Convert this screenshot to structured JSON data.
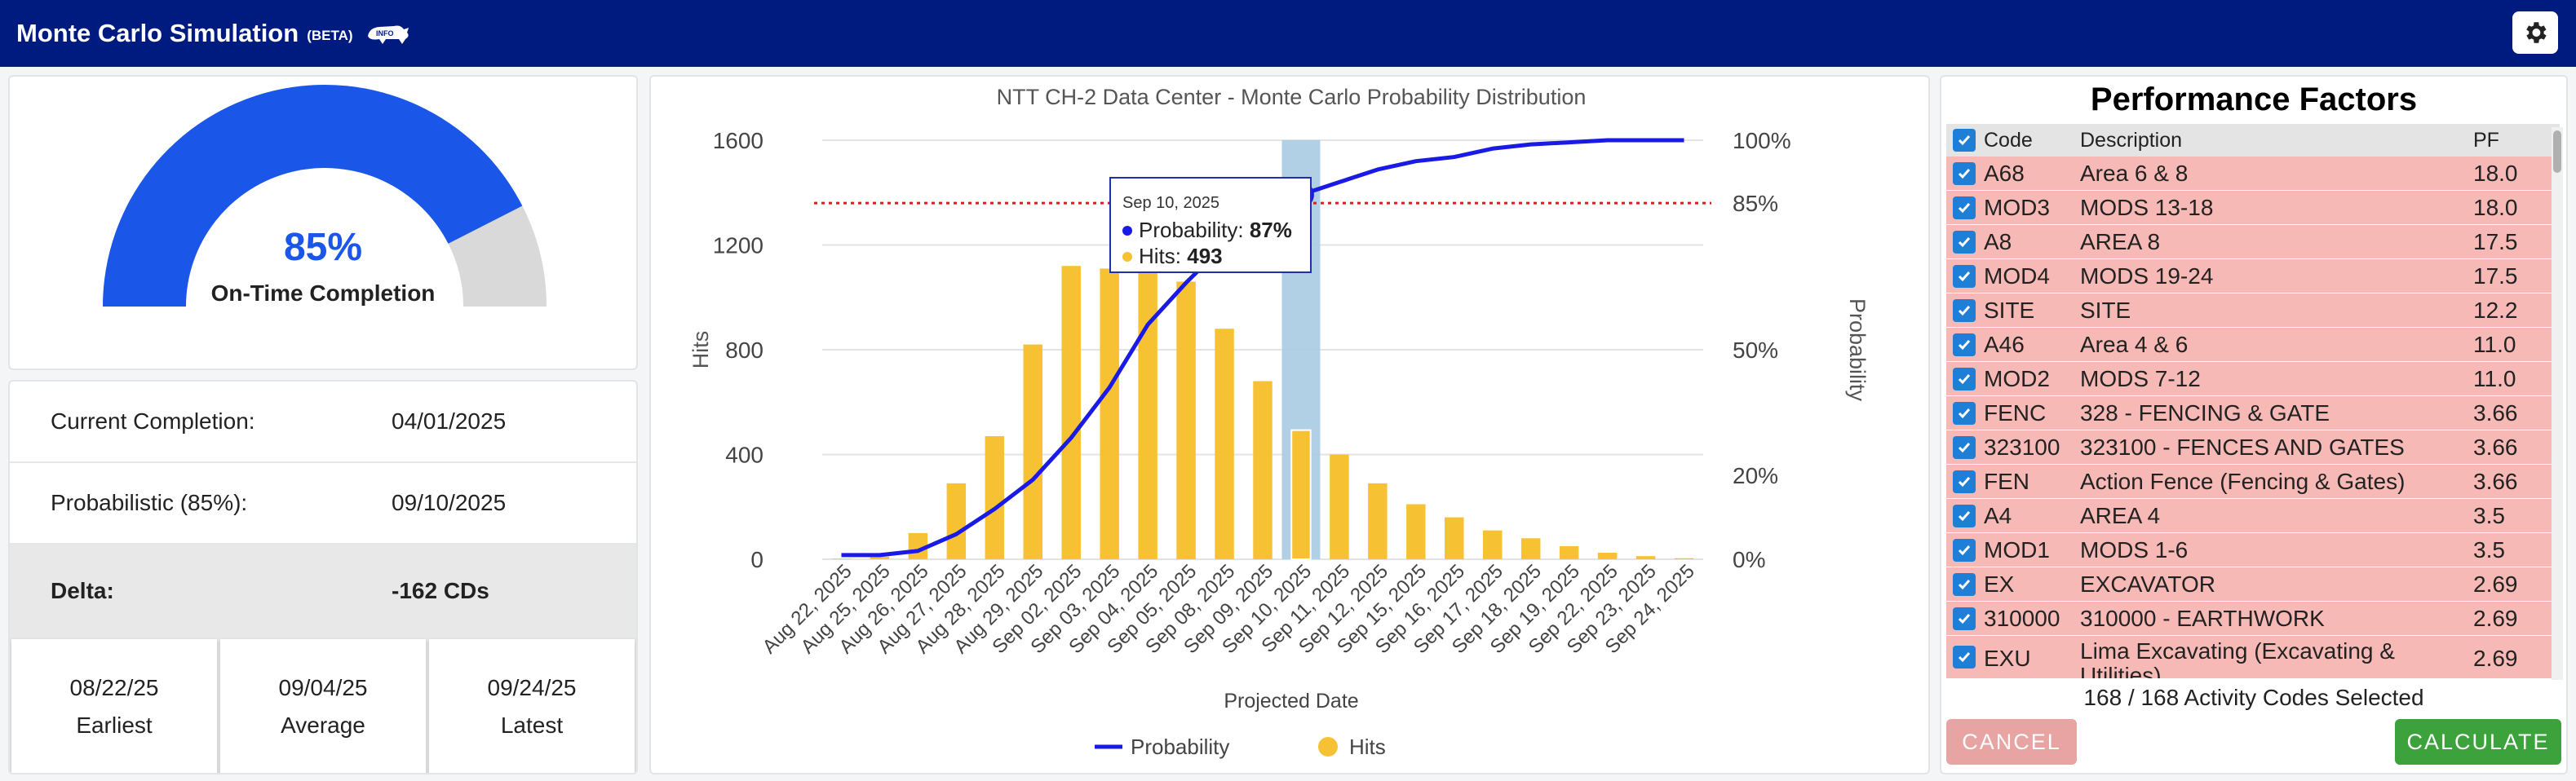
{
  "header": {
    "title": "Monte Carlo Simulation",
    "beta": "(BETA)",
    "info_icon": "info-rhino-icon",
    "settings_icon": "gear-icon"
  },
  "gauge": {
    "value_text": "85%",
    "value": 0.85,
    "label": "On-Time Completion",
    "fill_color": "#1a56e8",
    "track_color": "#d9d9d9"
  },
  "stats": {
    "current_label": "Current Completion:",
    "current_value": "04/01/2025",
    "prob_label": "Probabilistic (85%):",
    "prob_value": "09/10/2025",
    "delta_label": "Delta:",
    "delta_value": "-162 CDs",
    "earliest": {
      "date": "08/22/25",
      "label": "Earliest"
    },
    "average": {
      "date": "09/04/25",
      "label": "Average"
    },
    "latest": {
      "date": "09/24/25",
      "label": "Latest"
    }
  },
  "chart_data": {
    "type": "bar",
    "title": "NTT CH-2 Data Center - Monte Carlo Probability Distribution",
    "xlabel": "Projected Date",
    "ylabel": "Hits",
    "y2label": "Probability",
    "ylim": [
      0,
      1600
    ],
    "yticks": [
      "0",
      "400",
      "800",
      "1200",
      "1600"
    ],
    "y2lim": [
      0,
      100
    ],
    "y2ticks": [
      {
        "v": 0,
        "label": "0%"
      },
      {
        "v": 20,
        "label": "20%"
      },
      {
        "v": 50,
        "label": "50%"
      },
      {
        "v": 85,
        "label": "85%"
      },
      {
        "v": 100,
        "label": "100%"
      }
    ],
    "categories": [
      "Aug 22, 2025",
      "Aug 25, 2025",
      "Aug 26, 2025",
      "Aug 27, 2025",
      "Aug 28, 2025",
      "Aug 29, 2025",
      "Sep 02, 2025",
      "Sep 03, 2025",
      "Sep 04, 2025",
      "Sep 05, 2025",
      "Sep 08, 2025",
      "Sep 09, 2025",
      "Sep 10, 2025",
      "Sep 11, 2025",
      "Sep 12, 2025",
      "Sep 15, 2025",
      "Sep 16, 2025",
      "Sep 17, 2025",
      "Sep 18, 2025",
      "Sep 19, 2025",
      "Sep 22, 2025",
      "Sep 23, 2025",
      "Sep 24, 2025"
    ],
    "series": [
      {
        "name": "Hits",
        "type": "bar",
        "color": "#f6c234",
        "values": [
          2,
          10,
          100,
          290,
          470,
          820,
          1120,
          1110,
          1120,
          1060,
          880,
          680,
          493,
          400,
          290,
          210,
          160,
          110,
          80,
          50,
          25,
          12,
          4
        ]
      },
      {
        "name": "Probability",
        "type": "line",
        "color": "#1a1ae6",
        "values": [
          1,
          1,
          2,
          6,
          12,
          19,
          29,
          41,
          56,
          66,
          75,
          81,
          87,
          90,
          93,
          95,
          96,
          98,
          99,
          99.5,
          100,
          100,
          100
        ]
      }
    ],
    "threshold": {
      "value": 85,
      "color": "#d62020"
    },
    "highlight_index": 12,
    "tooltip": {
      "date": "Sep 10, 2025",
      "prob_label": "Probability:",
      "prob_value": "87%",
      "hits_label": "Hits:",
      "hits_value": "493"
    },
    "legend": {
      "position": "bottom"
    }
  },
  "perf": {
    "title": "Performance Factors",
    "headers": {
      "code": "Code",
      "desc": "Description",
      "pf": "PF"
    },
    "rows": [
      {
        "code": "A68",
        "desc": "Area 6 & 8",
        "pf": "18.0"
      },
      {
        "code": "MOD3",
        "desc": "MODS 13-18",
        "pf": "18.0"
      },
      {
        "code": "A8",
        "desc": "AREA 8",
        "pf": "17.5"
      },
      {
        "code": "MOD4",
        "desc": "MODS 19-24",
        "pf": "17.5"
      },
      {
        "code": "SITE",
        "desc": "SITE",
        "pf": "12.2"
      },
      {
        "code": "A46",
        "desc": "Area 4 & 6",
        "pf": "11.0"
      },
      {
        "code": "MOD2",
        "desc": "MODS 7-12",
        "pf": "11.0"
      },
      {
        "code": "FENC",
        "desc": "328 - FENCING & GATE",
        "pf": "3.66"
      },
      {
        "code": "323100",
        "desc": "323100 - FENCES AND GATES",
        "pf": "3.66"
      },
      {
        "code": "FEN",
        "desc": "Action Fence (Fencing & Gates)",
        "pf": "3.66"
      },
      {
        "code": "A4",
        "desc": "AREA 4",
        "pf": "3.5"
      },
      {
        "code": "MOD1",
        "desc": "MODS 1-6",
        "pf": "3.5"
      },
      {
        "code": "EX",
        "desc": "EXCAVATOR",
        "pf": "2.69"
      },
      {
        "code": "310000",
        "desc": "310000 - EARTHWORK",
        "pf": "2.69"
      },
      {
        "code": "EXU",
        "desc": "Lima Excavating (Excavating & Utilities)",
        "pf": "2.69"
      }
    ],
    "summary": "168 / 168 Activity Codes Selected",
    "cancel_label": "CANCEL",
    "calculate_label": "CALCULATE"
  }
}
